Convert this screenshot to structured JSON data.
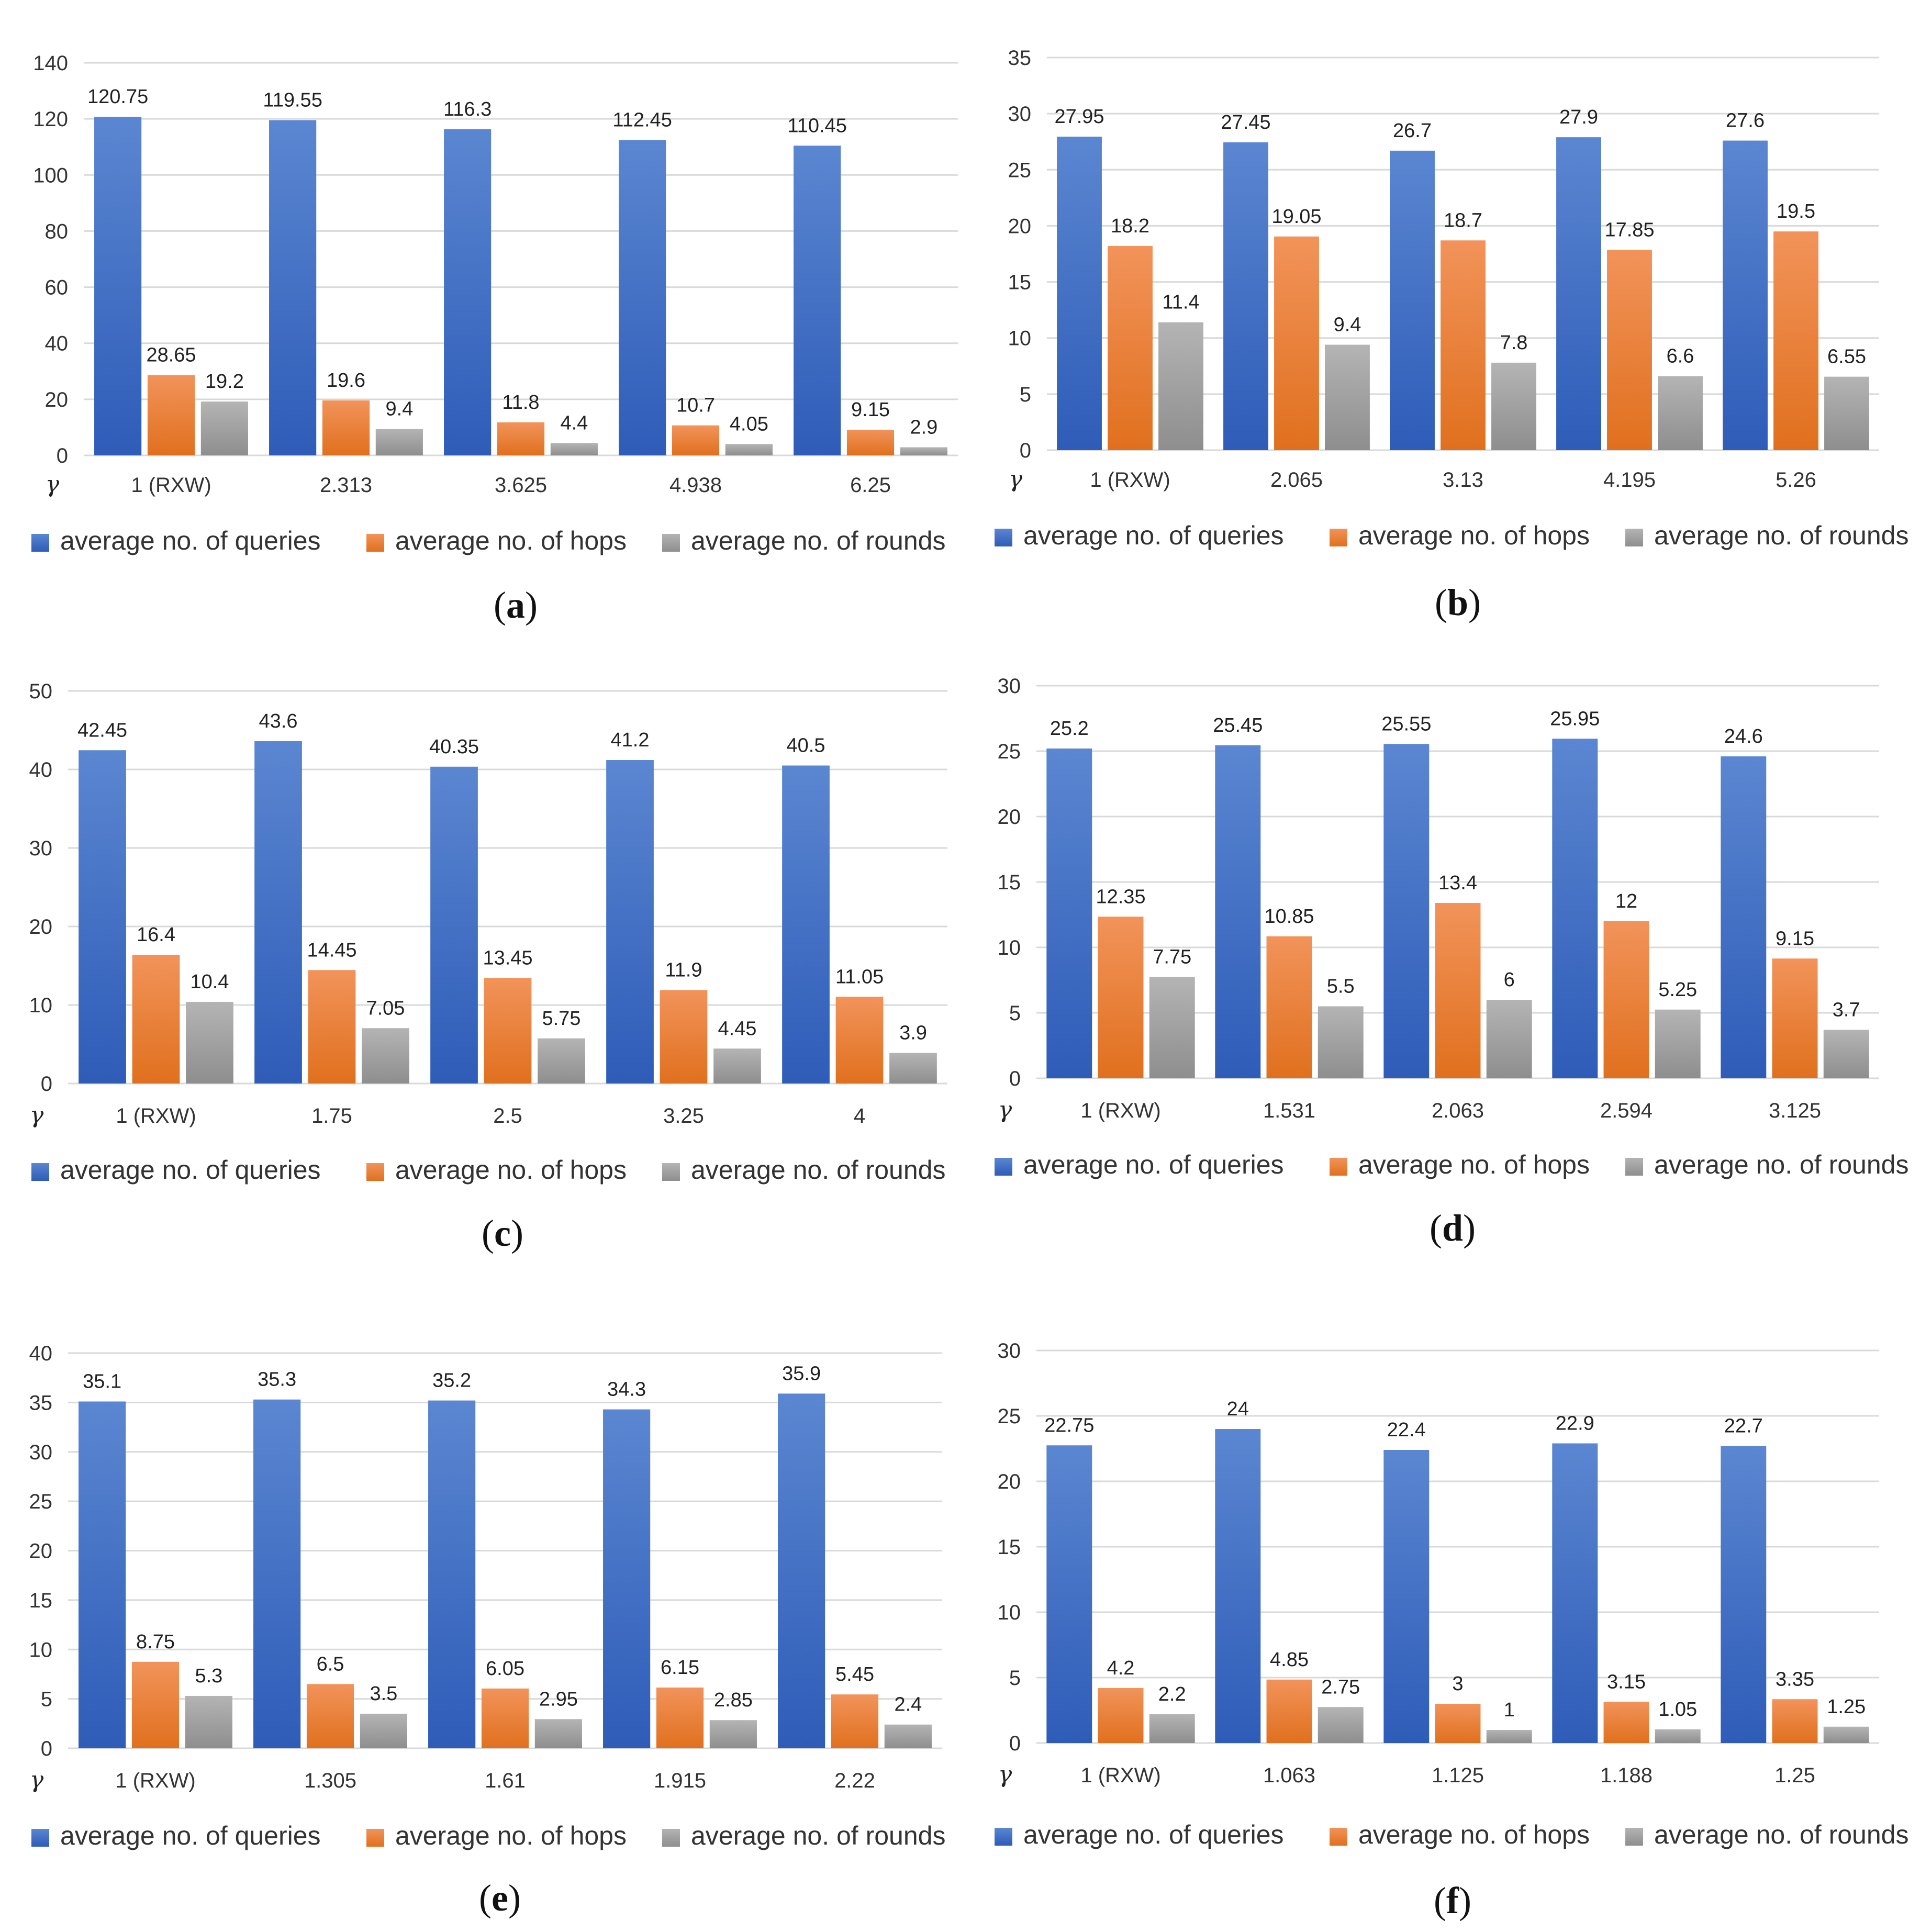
{
  "colors": {
    "queries": "#4472c4",
    "hops": "#ed7d31",
    "rounds": "#a5a5a5"
  },
  "chart_data": [
    {
      "type": "bar",
      "panel": "a",
      "caption_letter": "a",
      "x_symbol": "γ",
      "categories": [
        "1 (RXW)",
        "2.313",
        "3.625",
        "4.938",
        "6.25"
      ],
      "yticks": [
        "0",
        "20",
        "40",
        "60",
        "80",
        "100",
        "120",
        "140"
      ],
      "ylim": [
        0,
        140
      ],
      "series": [
        {
          "name": "average no. of queries",
          "values": [
            120.75,
            119.55,
            116.3,
            112.45,
            110.45
          ],
          "labels": [
            "120.75",
            "119.55",
            "116.3",
            "112.45",
            "110.45"
          ]
        },
        {
          "name": "average no. of  hops",
          "values": [
            28.65,
            19.6,
            11.8,
            10.7,
            9.15
          ],
          "labels": [
            "28.65",
            "19.6",
            "11.8",
            "10.7",
            "9.15"
          ]
        },
        {
          "name": "average no. of  rounds",
          "values": [
            19.2,
            9.4,
            4.4,
            4.05,
            2.9
          ],
          "labels": [
            "19.2",
            "9.4",
            "4.4",
            "4.05",
            "2.9"
          ]
        }
      ]
    },
    {
      "type": "bar",
      "panel": "b",
      "caption_letter": "b",
      "x_symbol": "γ",
      "categories": [
        "1 (RXW)",
        "2.065",
        "3.13",
        "4.195",
        "5.26"
      ],
      "yticks": [
        "0",
        "5",
        "10",
        "15",
        "20",
        "25",
        "30",
        "35"
      ],
      "ylim": [
        0,
        35
      ],
      "series": [
        {
          "name": "average no. of queries",
          "values": [
            27.95,
            27.45,
            26.7,
            27.9,
            27.6
          ],
          "labels": [
            "27.95",
            "27.45",
            "26.7",
            "27.9",
            "27.6"
          ]
        },
        {
          "name": "average no. of  hops",
          "values": [
            18.2,
            19.05,
            18.7,
            17.85,
            19.5
          ],
          "labels": [
            "18.2",
            "19.05",
            "18.7",
            "17.85",
            "19.5"
          ]
        },
        {
          "name": "average no. of  rounds",
          "values": [
            11.4,
            9.4,
            7.8,
            6.6,
            6.55
          ],
          "labels": [
            "11.4",
            "9.4",
            "7.8",
            "6.6",
            "6.55"
          ]
        }
      ]
    },
    {
      "type": "bar",
      "panel": "c",
      "caption_letter": "c",
      "x_symbol": "γ",
      "categories": [
        "1 (RXW)",
        "1.75",
        "2.5",
        "3.25",
        "4"
      ],
      "yticks": [
        "0",
        "10",
        "20",
        "30",
        "40",
        "50"
      ],
      "ylim": [
        0,
        50
      ],
      "series": [
        {
          "name": "average no. of queries",
          "values": [
            42.45,
            43.6,
            40.35,
            41.2,
            40.5
          ],
          "labels": [
            "42.45",
            "43.6",
            "40.35",
            "41.2",
            "40.5"
          ]
        },
        {
          "name": "average no. of  hops",
          "values": [
            16.4,
            14.45,
            13.45,
            11.9,
            11.05
          ],
          "labels": [
            "16.4",
            "14.45",
            "13.45",
            "11.9",
            "11.05"
          ]
        },
        {
          "name": "average no. of  rounds",
          "values": [
            10.4,
            7.05,
            5.75,
            4.45,
            3.9
          ],
          "labels": [
            "10.4",
            "7.05",
            "5.75",
            "4.45",
            "3.9"
          ]
        }
      ]
    },
    {
      "type": "bar",
      "panel": "d",
      "caption_letter": "d",
      "x_symbol": "γ",
      "categories": [
        "1 (RXW)",
        "1.531",
        "2.063",
        "2.594",
        "3.125"
      ],
      "yticks": [
        "0",
        "5",
        "10",
        "15",
        "20",
        "25",
        "30"
      ],
      "ylim": [
        0,
        30
      ],
      "series": [
        {
          "name": "average no. of queries",
          "values": [
            25.2,
            25.45,
            25.55,
            25.95,
            24.6
          ],
          "labels": [
            "25.2",
            "25.45",
            "25.55",
            "25.95",
            "24.6"
          ]
        },
        {
          "name": "average no. of  hops",
          "values": [
            12.35,
            10.85,
            13.4,
            12,
            9.15
          ],
          "labels": [
            "12.35",
            "10.85",
            "13.4",
            "12",
            "9.15"
          ]
        },
        {
          "name": "average no. of  rounds",
          "values": [
            7.75,
            5.5,
            6,
            5.25,
            3.7
          ],
          "labels": [
            "7.75",
            "5.5",
            "6",
            "5.25",
            "3.7"
          ]
        }
      ]
    },
    {
      "type": "bar",
      "panel": "e",
      "caption_letter": "e",
      "x_symbol": "γ",
      "categories": [
        "1 (RXW)",
        "1.305",
        "1.61",
        "1.915",
        "2.22"
      ],
      "yticks": [
        "0",
        "5",
        "10",
        "15",
        "20",
        "25",
        "30",
        "35",
        "40"
      ],
      "ylim": [
        0,
        40
      ],
      "series": [
        {
          "name": "average no. of queries",
          "values": [
            35.1,
            35.3,
            35.2,
            34.3,
            35.9
          ],
          "labels": [
            "35.1",
            "35.3",
            "35.2",
            "34.3",
            "35.9"
          ]
        },
        {
          "name": "average no. of  hops",
          "values": [
            8.75,
            6.5,
            6.05,
            6.15,
            5.45
          ],
          "labels": [
            "8.75",
            "6.5",
            "6.05",
            "6.15",
            "5.45"
          ]
        },
        {
          "name": "average no. of  rounds",
          "values": [
            5.3,
            3.5,
            2.95,
            2.85,
            2.4
          ],
          "labels": [
            "5.3",
            "3.5",
            "2.95",
            "2.85",
            "2.4"
          ]
        }
      ]
    },
    {
      "type": "bar",
      "panel": "f",
      "caption_letter": "f",
      "x_symbol": "γ",
      "categories": [
        "1 (RXW)",
        "1.063",
        "1.125",
        "1.188",
        "1.25"
      ],
      "yticks": [
        "0",
        "5",
        "10",
        "15",
        "20",
        "25",
        "30"
      ],
      "ylim": [
        0,
        30
      ],
      "series": [
        {
          "name": "average no. of queries",
          "values": [
            22.75,
            24,
            22.4,
            22.9,
            22.7
          ],
          "labels": [
            "22.75",
            "24",
            "22.4",
            "22.9",
            "22.7"
          ]
        },
        {
          "name": "average no. of  hops",
          "values": [
            4.2,
            4.85,
            3,
            3.15,
            3.35
          ],
          "labels": [
            "4.2",
            "4.85",
            "3",
            "3.15",
            "3.35"
          ]
        },
        {
          "name": "average no. of  rounds",
          "values": [
            2.2,
            2.75,
            1,
            1.05,
            1.25
          ],
          "labels": [
            "2.2",
            "2.75",
            "1",
            "1.05",
            "1.25"
          ]
        }
      ]
    }
  ]
}
